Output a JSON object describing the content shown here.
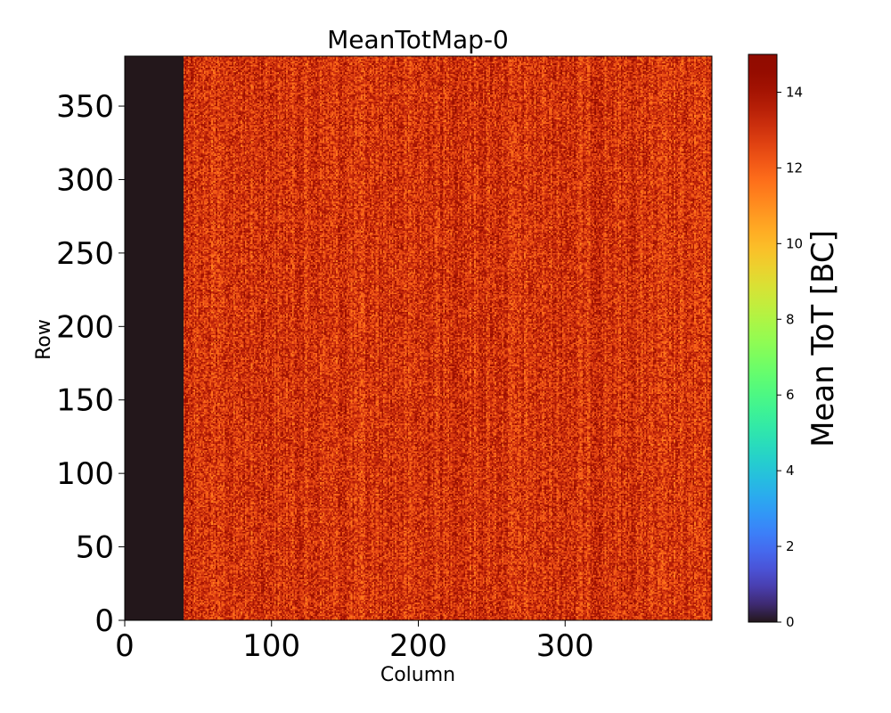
{
  "chart_data": {
    "type": "heatmap",
    "title": "MeanTotMap-0",
    "xlabel": "Column",
    "ylabel": "Row",
    "xlim": [
      0,
      400
    ],
    "ylim": [
      0,
      384
    ],
    "x_ticks": [
      0,
      100,
      200,
      300
    ],
    "y_ticks": [
      0,
      50,
      100,
      150,
      200,
      250,
      300,
      350
    ],
    "grid": false,
    "colorbar": {
      "label": "Mean ToT [BC]",
      "range": [
        0,
        15
      ],
      "ticks": [
        0,
        2,
        4,
        6,
        8,
        10,
        12,
        14
      ],
      "colormap": "turbo"
    },
    "regions": [
      {
        "name": "disabled-columns",
        "column_range": [
          0,
          40
        ],
        "row_range": [
          0,
          384
        ],
        "value": 0
      },
      {
        "name": "active-pixels",
        "column_range": [
          40,
          400
        ],
        "row_range": [
          0,
          384
        ],
        "value_range": [
          11,
          15
        ],
        "typical_value": 13
      }
    ],
    "colors": {
      "disabled": "#30123b",
      "background": "#ffffff"
    }
  }
}
